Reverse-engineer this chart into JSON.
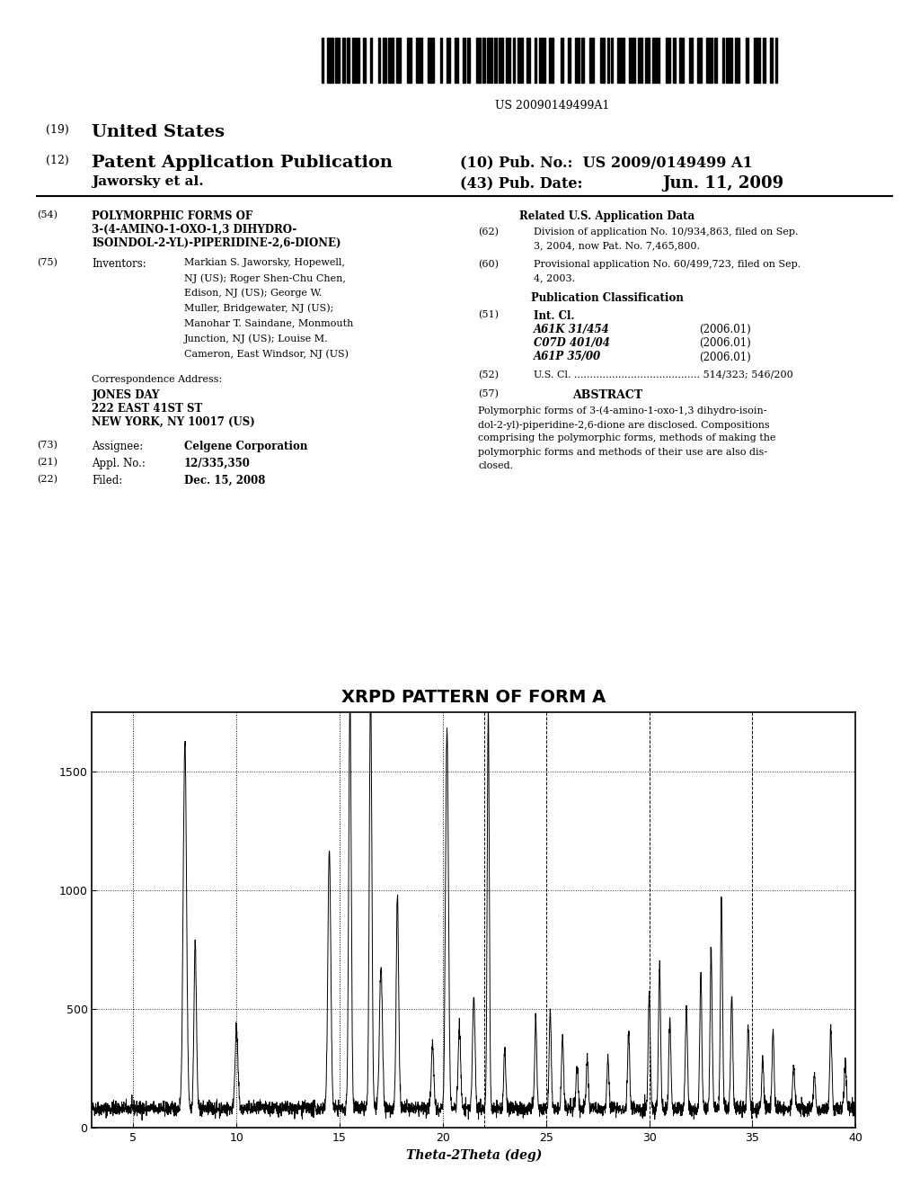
{
  "title": "XRPD PATTERN OF FORM A",
  "xlabel": "Theta-2Theta (deg)",
  "xlim": [
    3,
    40
  ],
  "ylim": [
    0,
    1750
  ],
  "yticks": [
    0,
    500,
    1000,
    1500
  ],
  "xticks": [
    5,
    10,
    15,
    20,
    25,
    30,
    35,
    40
  ],
  "dotted_hlines": [
    500,
    1000,
    1500
  ],
  "dotted_vlines": [
    5,
    10,
    15,
    20
  ],
  "dashed_vlines": [
    22,
    25,
    30,
    35,
    40
  ],
  "background_color": "#ffffff",
  "line_color": "#000000",
  "patent_number": "US 20090149499A1"
}
